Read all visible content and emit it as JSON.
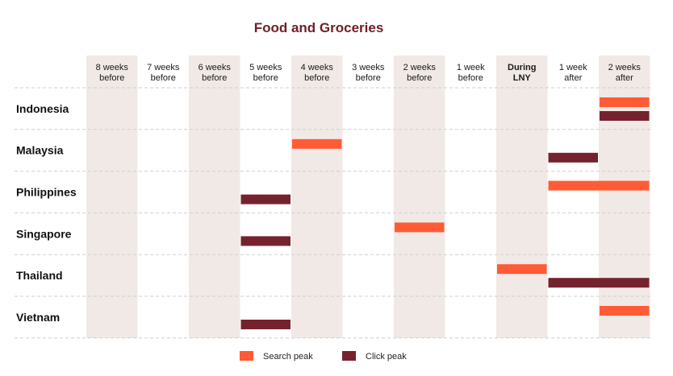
{
  "chart_data": {
    "type": "gantt-timeline",
    "title": "Food and Groceries",
    "columns": [
      {
        "line1": "8 weeks",
        "line2": "before",
        "shaded": true,
        "highlight": false
      },
      {
        "line1": "7 weeks",
        "line2": "before",
        "shaded": false,
        "highlight": false
      },
      {
        "line1": "6 weeks",
        "line2": "before",
        "shaded": true,
        "highlight": false
      },
      {
        "line1": "5 weeks",
        "line2": "before",
        "shaded": false,
        "highlight": false
      },
      {
        "line1": "4 weeks",
        "line2": "before",
        "shaded": true,
        "highlight": false
      },
      {
        "line1": "3 weeks",
        "line2": "before",
        "shaded": false,
        "highlight": false
      },
      {
        "line1": "2 weeks",
        "line2": "before",
        "shaded": true,
        "highlight": false
      },
      {
        "line1": "1 week",
        "line2": "before",
        "shaded": false,
        "highlight": false
      },
      {
        "line1": "During",
        "line2": "LNY",
        "shaded": true,
        "highlight": true
      },
      {
        "line1": "1 week",
        "line2": "after",
        "shaded": false,
        "highlight": false
      },
      {
        "line1": "2 weeks",
        "line2": "after",
        "shaded": true,
        "highlight": false
      }
    ],
    "rows": [
      "Indonesia",
      "Malaysia",
      "Philippines",
      "Singapore",
      "Thailand",
      "Vietnam"
    ],
    "series": [
      {
        "name": "Search peak",
        "key": "search",
        "color": "#FF5B35"
      },
      {
        "name": "Click peak",
        "key": "click",
        "color": "#74232E"
      }
    ],
    "bars": [
      {
        "row": "Indonesia",
        "series": "search",
        "start_col": 10,
        "end_col": 10
      },
      {
        "row": "Indonesia",
        "series": "click",
        "start_col": 10,
        "end_col": 10
      },
      {
        "row": "Malaysia",
        "series": "search",
        "start_col": 4,
        "end_col": 4
      },
      {
        "row": "Malaysia",
        "series": "click",
        "start_col": 9,
        "end_col": 9
      },
      {
        "row": "Philippines",
        "series": "search",
        "start_col": 9,
        "end_col": 10
      },
      {
        "row": "Philippines",
        "series": "click",
        "start_col": 3,
        "end_col": 3
      },
      {
        "row": "Singapore",
        "series": "search",
        "start_col": 6,
        "end_col": 6
      },
      {
        "row": "Singapore",
        "series": "click",
        "start_col": 3,
        "end_col": 3
      },
      {
        "row": "Thailand",
        "series": "search",
        "start_col": 8,
        "end_col": 8
      },
      {
        "row": "Thailand",
        "series": "click",
        "start_col": 9,
        "end_col": 10
      },
      {
        "row": "Vietnam",
        "series": "search",
        "start_col": 10,
        "end_col": 10
      },
      {
        "row": "Vietnam",
        "series": "click",
        "start_col": 3,
        "end_col": 3
      }
    ],
    "legend": [
      "Search peak",
      "Click peak"
    ],
    "legend_position": "bottom-center",
    "grid": true
  },
  "colors": {
    "title": "#6E1E27",
    "highlight_label": "#6E1E27",
    "shade": "#F1E9E5",
    "gridline": "#CFCFCF"
  }
}
